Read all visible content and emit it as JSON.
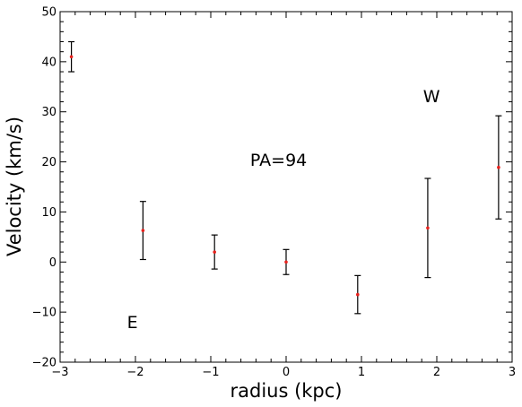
{
  "chart_data": {
    "type": "scatter",
    "xlabel": "radius (kpc)",
    "ylabel": "Velocity (km/s)",
    "xlim": [
      -3,
      3
    ],
    "ylim": [
      -20,
      50
    ],
    "x_ticks": [
      -3,
      -2,
      -1,
      0,
      1,
      2,
      3
    ],
    "y_ticks": [
      -20,
      -10,
      0,
      10,
      20,
      30,
      40,
      50
    ],
    "x_tick_labels": [
      "−3",
      "−2",
      "−1",
      "0",
      "1",
      "2",
      "3"
    ],
    "y_tick_labels": [
      "−20",
      "−10",
      "0",
      "10",
      "20",
      "30",
      "40",
      "50"
    ],
    "grid": false,
    "marker_color": "#e8211c",
    "errorbar_color": "#000000",
    "points": [
      {
        "x": -2.85,
        "y": 41.0,
        "err": 3.0
      },
      {
        "x": -1.9,
        "y": 6.3,
        "err": 5.8
      },
      {
        "x": -0.95,
        "y": 2.0,
        "err": 3.4
      },
      {
        "x": 0.0,
        "y": 0.0,
        "err": 2.5
      },
      {
        "x": 0.95,
        "y": -6.5,
        "err": 3.8
      },
      {
        "x": 1.88,
        "y": 6.8,
        "err": 9.9
      },
      {
        "x": 2.82,
        "y": 18.9,
        "err": 10.3
      }
    ],
    "annotations": [
      {
        "text": "PA=94",
        "x": -0.1,
        "y": 20.5
      },
      {
        "text": "W",
        "x": 1.93,
        "y": 33.2
      },
      {
        "text": "E",
        "x": -2.04,
        "y": -11.9
      }
    ]
  }
}
